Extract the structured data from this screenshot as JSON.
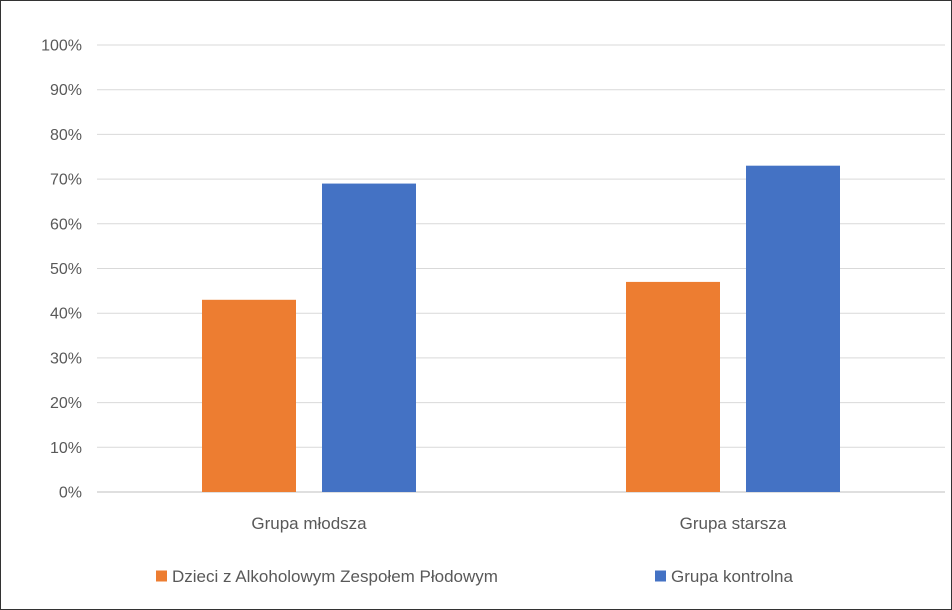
{
  "chart_data": {
    "type": "bar",
    "title": "",
    "xlabel": "",
    "ylabel": "",
    "categories": [
      "Grupa młodsza",
      "Grupa starsza"
    ],
    "series": [
      {
        "name": "Dzieci z Alkoholowym Zespołem Płodowym",
        "color": "#ed7d31",
        "values": [
          43,
          47
        ]
      },
      {
        "name": "Grupa kontrolna",
        "color": "#4472c4",
        "values": [
          69,
          73
        ]
      }
    ],
    "ylim": [
      0,
      100
    ],
    "yticks": [
      "0%",
      "10%",
      "20%",
      "30%",
      "40%",
      "50%",
      "60%",
      "70%",
      "80%",
      "90%",
      "100%"
    ],
    "grid": true,
    "legend_position": "bottom"
  }
}
